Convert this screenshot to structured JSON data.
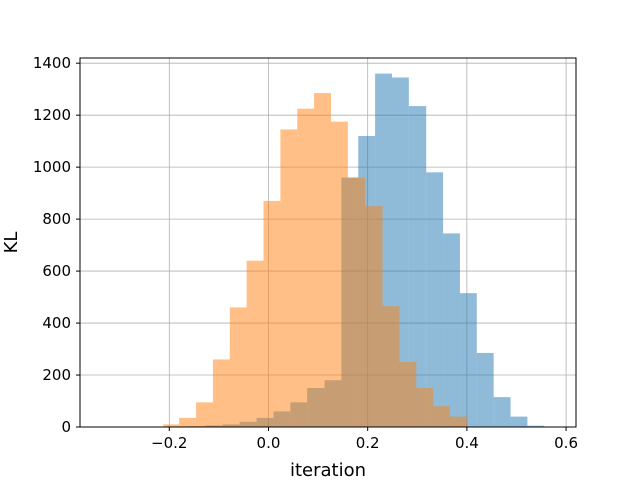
{
  "chart_data": {
    "type": "bar",
    "subtype": "overlapping-histogram",
    "xlabel": "iteration",
    "ylabel": "KL",
    "xlim": [
      -0.38,
      0.62
    ],
    "ylim": [
      0,
      1420
    ],
    "xticks": [
      -0.2,
      0.0,
      0.2,
      0.4,
      0.6
    ],
    "xtick_labels": [
      "−0.2",
      "0.0",
      "0.2",
      "0.4",
      "0.6"
    ],
    "yticks": [
      0,
      200,
      400,
      600,
      800,
      1000,
      1200,
      1400
    ],
    "ytick_labels": [
      "0",
      "200",
      "400",
      "600",
      "800",
      "1000",
      "1200",
      "1400"
    ],
    "grid": true,
    "opacity": 0.5,
    "series": [
      {
        "color": "#1f77b4",
        "bin_edges": [
          -0.195,
          -0.161,
          -0.126,
          -0.092,
          -0.058,
          -0.024,
          0.01,
          0.044,
          0.078,
          0.113,
          0.147,
          0.181,
          0.215,
          0.249,
          0.283,
          0.318,
          0.352,
          0.386,
          0.42,
          0.454,
          0.488,
          0.522,
          0.556
        ],
        "counts": [
          2,
          3,
          6,
          10,
          20,
          35,
          60,
          95,
          150,
          180,
          960,
          1120,
          1360,
          1345,
          1235,
          980,
          745,
          515,
          285,
          115,
          40,
          5
        ]
      },
      {
        "color": "#ff7f0e",
        "bin_edges": [
          -0.212,
          -0.18,
          -0.146,
          -0.112,
          -0.078,
          -0.044,
          -0.01,
          0.024,
          0.058,
          0.092,
          0.126,
          0.16,
          0.195,
          0.23,
          0.264,
          0.298,
          0.332,
          0.366,
          0.4
        ],
        "counts": [
          10,
          35,
          95,
          260,
          460,
          640,
          870,
          1145,
          1225,
          1285,
          1175,
          960,
          850,
          465,
          250,
          150,
          80,
          40
        ]
      }
    ]
  }
}
